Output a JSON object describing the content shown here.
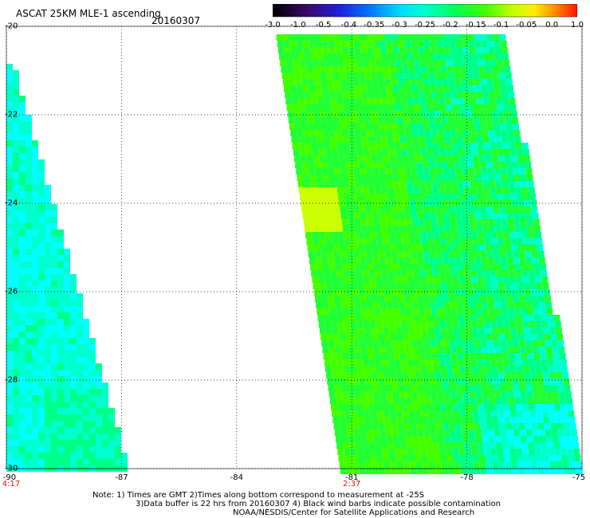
{
  "header": {
    "title": "ASCAT 25KM MLE-1 ascending",
    "date": "20160307"
  },
  "colorbar": {
    "labels": [
      "-3.0",
      "-1.0",
      "-0.5",
      "-0.4",
      "-0.35",
      "-0.3",
      "-0.25",
      "-0.2",
      "-0.15",
      "-0.1",
      "-0.05",
      "0.0",
      "1.0"
    ],
    "colors": [
      "#2a0a3a",
      "#4a0a8a",
      "#2222dd",
      "#0066ff",
      "#00aaff",
      "#00ffff",
      "#00ffaa",
      "#00ff44",
      "#44ff00",
      "#aaff00",
      "#ffff00",
      "#ff9900",
      "#ff2200"
    ]
  },
  "axes": {
    "lat_labels": [
      "-20",
      "-22",
      "-24",
      "-26",
      "-28",
      "-30"
    ],
    "lon_labels": [
      "-90",
      "-87",
      "-84",
      "-81",
      "-78",
      "-75"
    ],
    "lon_range": [
      -90,
      -75
    ],
    "lat_range": [
      -20,
      -30
    ],
    "gridlines": "dotted"
  },
  "swaths": [
    {
      "name": "west",
      "time": "4:17",
      "time_lon": -90
    },
    {
      "name": "east",
      "time": "2:37",
      "time_lon": -81
    }
  ],
  "note": {
    "line1": "Note: 1) Times are GMT 2)Times along bottom correspond to measurement at -25S",
    "line2": "3)Data buffer is 22 hrs from 20160307 4) Black wind barbs indicate possible contamination",
    "line3": "NOAA/NESDIS/Center for Satellite Applications and Research"
  },
  "colors": {
    "cyan": "#00ffff",
    "green": "#22ee22",
    "yellowgreen": "#aaff00",
    "label_red": "#cc2200"
  }
}
